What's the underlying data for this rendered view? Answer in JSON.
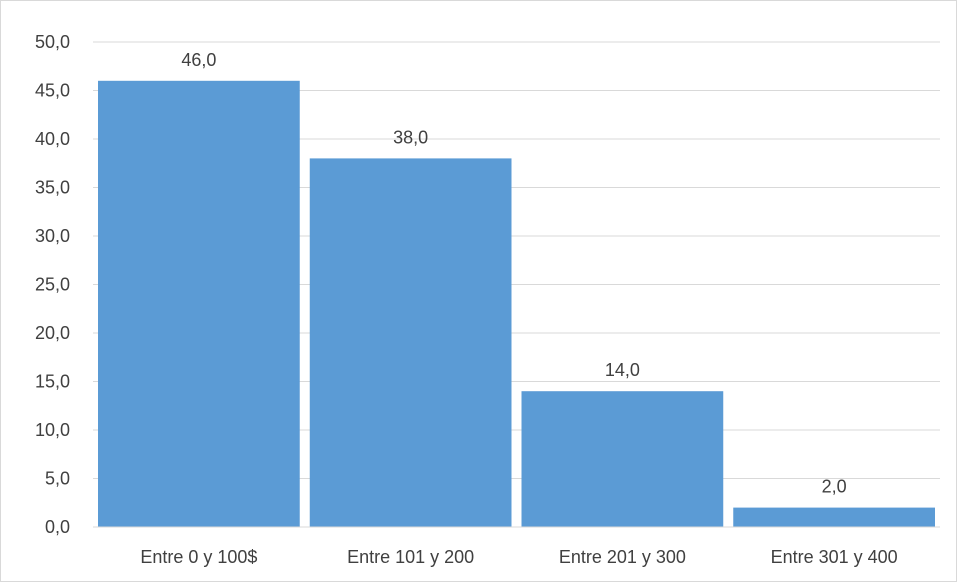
{
  "chart_data": {
    "type": "bar",
    "categories": [
      "Entre 0 y 100$",
      "Entre 101 y 200",
      "Entre 201 y 300",
      "Entre 301 y 400"
    ],
    "values": [
      46.0,
      38.0,
      14.0,
      2.0
    ],
    "data_labels": [
      "46,0",
      "38,0",
      "14,0",
      "2,0"
    ],
    "y_ticks": [
      "0,0",
      "5,0",
      "10,0",
      "15,0",
      "20,0",
      "25,0",
      "30,0",
      "35,0",
      "40,0",
      "45,0",
      "50,0"
    ],
    "ylim": [
      0,
      50
    ],
    "y_step": 5,
    "grid": true,
    "legend": "none",
    "bar_color": "#5b9bd5",
    "grid_color": "#d9d9d9",
    "text_color": "#404040"
  }
}
